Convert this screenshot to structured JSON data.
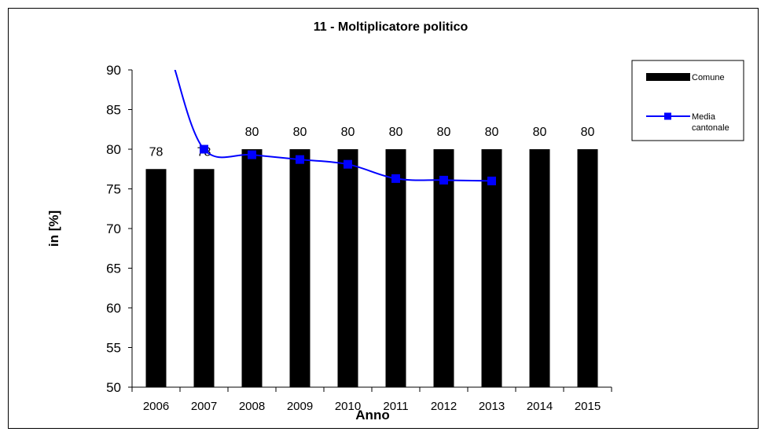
{
  "chart_data": {
    "type": "bar",
    "title": "11 - Moltiplicatore politico",
    "xlabel": "Anno",
    "ylabel": "in  [%]",
    "ylim": [
      50,
      90
    ],
    "yticks": [
      50,
      55,
      60,
      65,
      70,
      75,
      80,
      85,
      90
    ],
    "categories": [
      "2006",
      "2007",
      "2008",
      "2009",
      "2010",
      "2011",
      "2012",
      "2013",
      "2014",
      "2015"
    ],
    "series": [
      {
        "name": "Comune",
        "type": "bar",
        "color": "#000000",
        "values": [
          77.5,
          77.5,
          80,
          80,
          80,
          80,
          80,
          80,
          80,
          80
        ],
        "labels": [
          "78",
          "78",
          "80",
          "80",
          "80",
          "80",
          "80",
          "80",
          "80",
          "80"
        ]
      },
      {
        "name": "Media cantonale",
        "type": "line",
        "color": "#0000ff",
        "values": [
          null,
          80,
          79.3,
          78.7,
          78.1,
          76.3,
          76.1,
          76.0,
          null,
          null
        ],
        "start_value": 90.5
      }
    ],
    "grid": false,
    "legend_position": "right",
    "legend_labels": {
      "comune": "Comune",
      "media_line1": "Media",
      "media_line2": "cantonale"
    }
  }
}
